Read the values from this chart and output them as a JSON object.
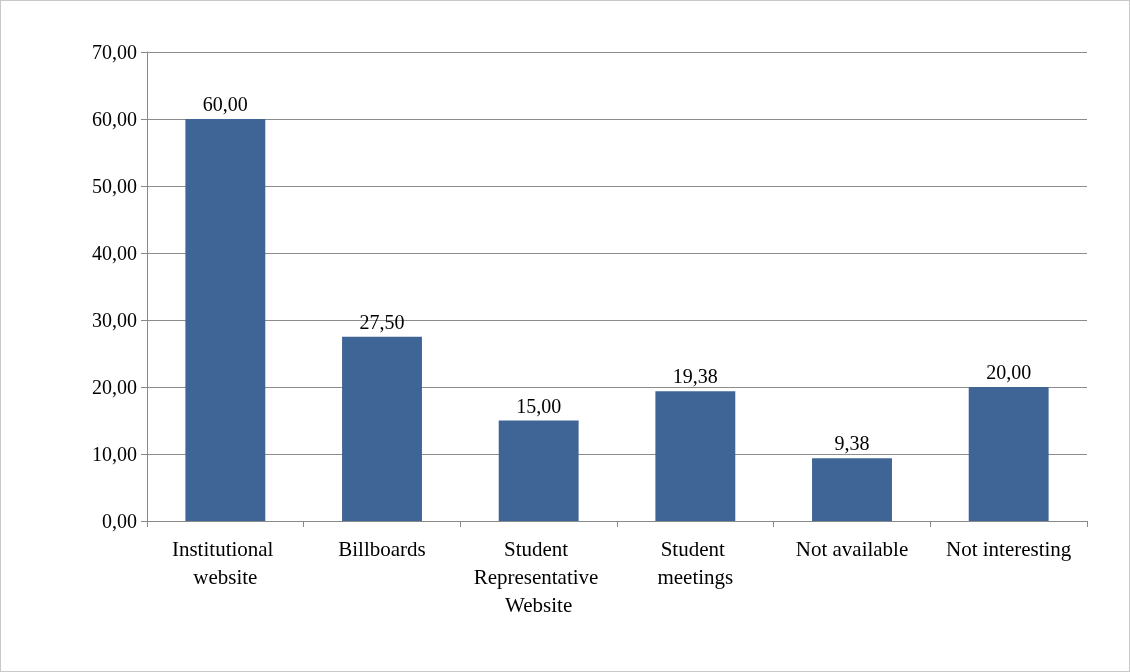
{
  "chart_data": {
    "type": "bar",
    "categories": [
      "Institutional website",
      "Billboards",
      "Student Representative Website",
      "Student meetings",
      "Not available",
      "Not interesting"
    ],
    "values": [
      60,
      27.5,
      15,
      19.38,
      9.38,
      20
    ],
    "value_labels": [
      "60,00",
      "27,50",
      "15,00",
      "19,38",
      "9,38",
      "20,00"
    ],
    "color": "#3f6496",
    "ylim": [
      0,
      70
    ],
    "yticks": [
      {
        "value": 0,
        "label": "0,00"
      },
      {
        "value": 10,
        "label": "10,00"
      },
      {
        "value": 20,
        "label": "20,00"
      },
      {
        "value": 30,
        "label": "30,00"
      },
      {
        "value": 40,
        "label": "40,00"
      },
      {
        "value": 50,
        "label": "50,00"
      },
      {
        "value": 60,
        "label": "60,00"
      },
      {
        "value": 70,
        "label": "70,00"
      }
    ],
    "grid": "y"
  }
}
